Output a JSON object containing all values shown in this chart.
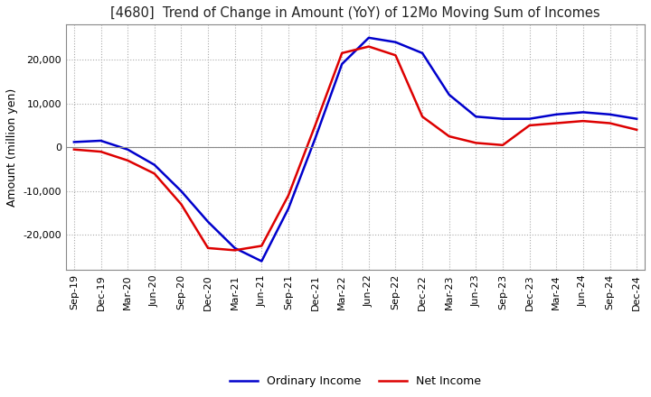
{
  "title": "[4680]  Trend of Change in Amount (YoY) of 12Mo Moving Sum of Incomes",
  "ylabel": "Amount (million yen)",
  "ylim": [
    -28000,
    28000
  ],
  "yticks": [
    -20000,
    -10000,
    0,
    10000,
    20000
  ],
  "background_color": "#ffffff",
  "grid_color": "#aaaaaa",
  "ordinary_income_color": "#0000cc",
  "net_income_color": "#dd0000",
  "dates": [
    "Sep-19",
    "Dec-19",
    "Mar-20",
    "Jun-20",
    "Sep-20",
    "Dec-20",
    "Mar-21",
    "Jun-21",
    "Sep-21",
    "Dec-21",
    "Mar-22",
    "Jun-22",
    "Sep-22",
    "Dec-22",
    "Mar-23",
    "Jun-23",
    "Sep-23",
    "Dec-23",
    "Mar-24",
    "Jun-24",
    "Sep-24",
    "Dec-24"
  ],
  "ordinary_income": [
    1200,
    1500,
    -500,
    -4000,
    -10000,
    -17000,
    -23000,
    -26000,
    -14000,
    2000,
    19000,
    25000,
    24000,
    21500,
    12000,
    7000,
    6500,
    6500,
    7500,
    8000,
    7500,
    6500
  ],
  "net_income": [
    -500,
    -1000,
    -3000,
    -6000,
    -13000,
    -23000,
    -23500,
    -22500,
    -11000,
    5000,
    21500,
    23000,
    21000,
    7000,
    2500,
    1000,
    500,
    5000,
    5500,
    6000,
    5500,
    4000
  ]
}
